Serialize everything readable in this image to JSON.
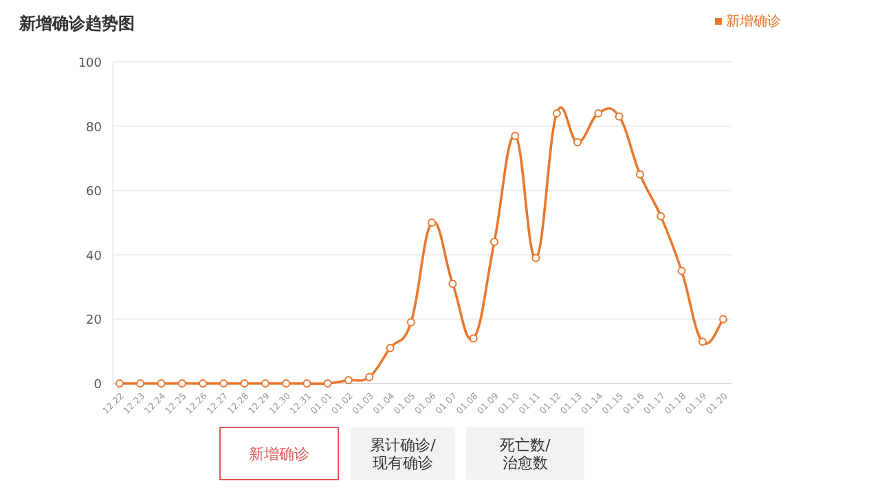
{
  "chart_data": {
    "type": "line",
    "title": "新增确诊趋势图",
    "categories": [
      "12.22",
      "12.23",
      "12.24",
      "12.25",
      "12.26",
      "12.27",
      "12.28",
      "12.29",
      "12.30",
      "12.31",
      "01.01",
      "01.02",
      "01.03",
      "01.04",
      "01.05",
      "01.06",
      "01.07",
      "01.08",
      "01.09",
      "01.10",
      "01.11",
      "01.12",
      "01.13",
      "01.14",
      "01.15",
      "01.16",
      "01.17",
      "01.18",
      "01.19",
      "01.20"
    ],
    "series": [
      {
        "name": "新增确诊",
        "color": "#e8782e",
        "values": [
          0,
          0,
          0,
          0,
          0,
          0,
          0,
          0,
          0,
          0,
          0,
          1,
          2,
          11,
          19,
          50,
          31,
          14,
          44,
          77,
          39,
          84,
          75,
          84,
          83,
          65,
          52,
          35,
          13,
          20
        ]
      }
    ],
    "ylim": [
      0,
      100
    ],
    "yticks": [
      0,
      20,
      40,
      60,
      80,
      100
    ],
    "grid": "y",
    "legend": "top right",
    "marker": "circle",
    "line_style": "solid",
    "annotations": [
      "新增确诊",
      "累计确诊/\n现有确诊",
      "死亡数/\n治愈数"
    ]
  }
}
